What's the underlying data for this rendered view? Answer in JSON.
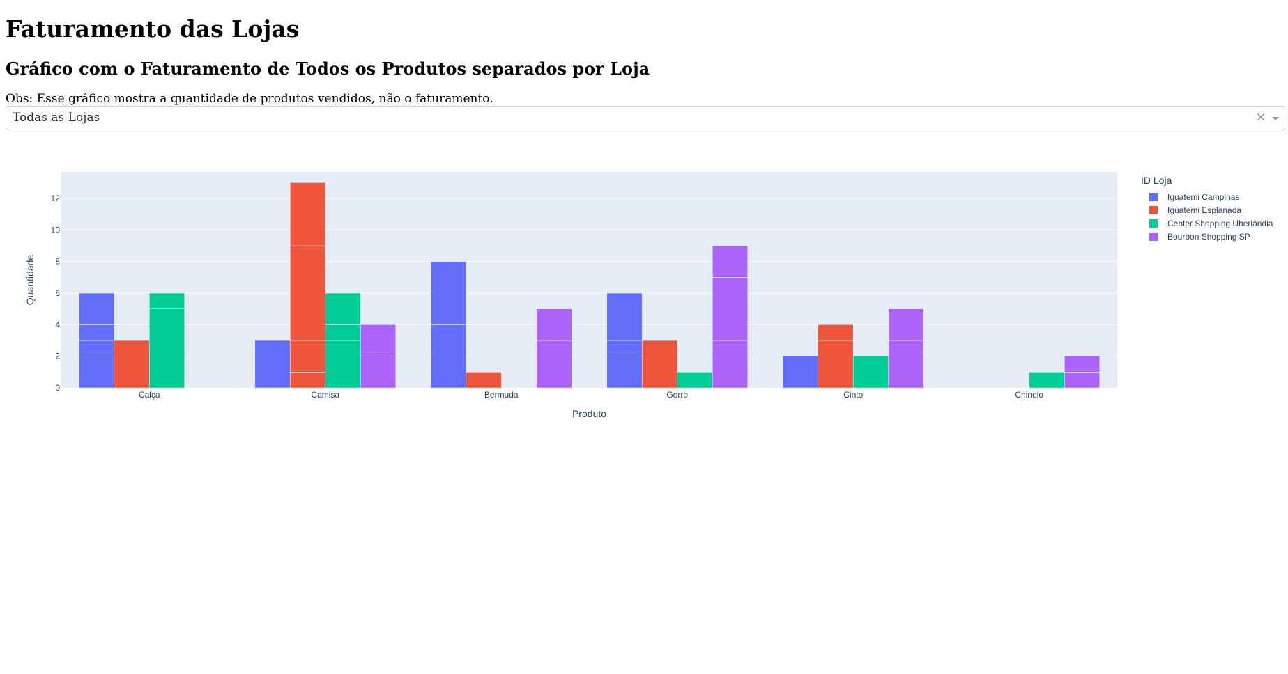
{
  "header": {
    "title": "Faturamento das Lojas",
    "subtitle": "Gráfico com o Faturamento de Todos os Produtos separados por Loja",
    "note": "Obs: Esse gráfico mostra a quantidade de produtos vendidos, não o faturamento."
  },
  "filter": {
    "selected": "Todas as Lojas",
    "clear_symbol": "×"
  },
  "chart_data": {
    "type": "bar",
    "barmode": "group",
    "categories": [
      "Calça",
      "Camisa",
      "Bermuda",
      "Gorro",
      "Cinto",
      "Chinelo"
    ],
    "xlabel": "Produto",
    "ylabel": "Quantidade",
    "ylim": [
      0,
      13.68
    ],
    "yticks": [
      0,
      2,
      4,
      6,
      8,
      10,
      12
    ],
    "legend_title": "ID Loja",
    "legend_position": "right",
    "grid": true,
    "background": "#e5ecf6",
    "series": [
      {
        "name": "Iguatemi Campinas",
        "color": "#636efa",
        "values": [
          6,
          3,
          8,
          6,
          2,
          0
        ],
        "segments": [
          [
            2,
            1,
            1,
            2
          ],
          [
            3
          ],
          [
            4,
            4
          ],
          [
            2,
            1,
            3
          ],
          [
            2
          ],
          []
        ]
      },
      {
        "name": "Iguatemi Esplanada",
        "color": "#ef553b",
        "values": [
          3,
          13,
          1,
          3,
          4,
          0
        ],
        "segments": [
          [
            3
          ],
          [
            1,
            2,
            6,
            4
          ],
          [
            1
          ],
          [
            3
          ],
          [
            3,
            1
          ],
          []
        ]
      },
      {
        "name": "Center Shopping Uberlândia",
        "color": "#00cc96",
        "values": [
          6,
          6,
          0,
          1,
          2,
          1
        ],
        "segments": [
          [
            5,
            1
          ],
          [
            3,
            1,
            2
          ],
          [],
          [
            1
          ],
          [
            2
          ],
          [
            1
          ]
        ]
      },
      {
        "name": "Bourbon Shopping SP",
        "color": "#ab63fa",
        "values": [
          0,
          4,
          5,
          9,
          5,
          2
        ],
        "segments": [
          [],
          [
            2,
            2
          ],
          [
            3,
            2
          ],
          [
            3,
            4,
            2
          ],
          [
            3,
            2
          ],
          [
            1,
            1
          ]
        ]
      }
    ]
  }
}
